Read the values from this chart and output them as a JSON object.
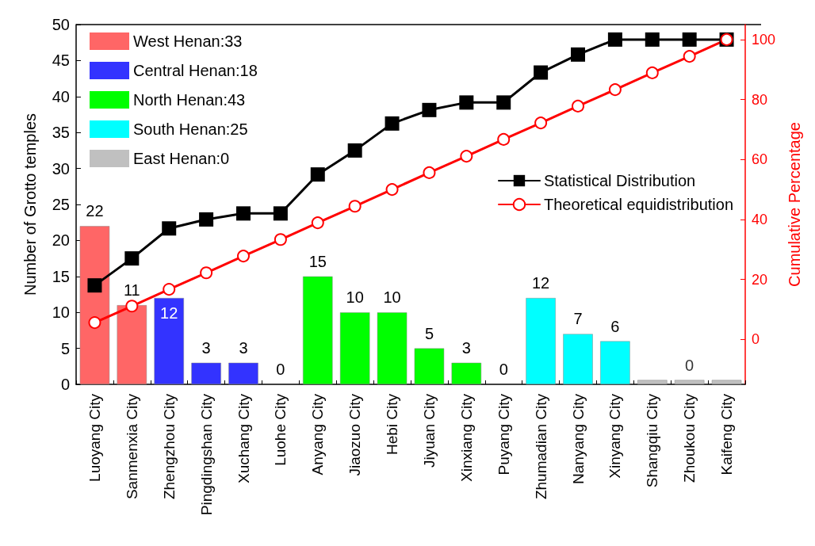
{
  "chart_data": {
    "type": "bar",
    "ylabel": "Number of Grotto temples",
    "y2label": "Cumulative Percentage",
    "categories": [
      "Luoyang City",
      "Sanmenxia City",
      "Zhengzhou City",
      "Pingdingshan City",
      "Xuchang City",
      "Luohe City",
      "Anyang City",
      "Jiaozuo City",
      "Hebi City",
      "Jiyuan City",
      "Xinxiang City",
      "Puyang City",
      "Zhumadian City",
      "Nanyang City",
      "Xinyang City",
      "Shangqiu City",
      "Zhoukou City",
      "Kaifeng City"
    ],
    "series": [
      {
        "name": "West Henan:33",
        "color": "#ff6666",
        "values": [
          22,
          11,
          null,
          null,
          null,
          null,
          null,
          null,
          null,
          null,
          null,
          null,
          null,
          null,
          null,
          null,
          null,
          null
        ],
        "value_labels": [
          "22",
          "11",
          null,
          null,
          null,
          null,
          null,
          null,
          null,
          null,
          null,
          null,
          null,
          null,
          null,
          null,
          null,
          null
        ]
      },
      {
        "name": "Central Henan:18",
        "color": "#3333ff",
        "values": [
          null,
          null,
          12,
          3,
          3,
          0,
          null,
          null,
          null,
          null,
          null,
          null,
          null,
          null,
          null,
          null,
          null,
          null
        ],
        "value_labels": [
          null,
          null,
          "12",
          "3",
          "3",
          "0",
          null,
          null,
          null,
          null,
          null,
          null,
          null,
          null,
          null,
          null,
          null,
          null
        ]
      },
      {
        "name": "North Henan:43",
        "color": "#00ff00",
        "values": [
          null,
          null,
          null,
          null,
          null,
          null,
          15,
          10,
          10,
          5,
          3,
          0,
          null,
          null,
          null,
          null,
          null,
          null
        ],
        "value_labels": [
          null,
          null,
          null,
          null,
          null,
          null,
          "15",
          "10",
          "10",
          "5",
          "3",
          "0",
          null,
          null,
          null,
          null,
          null,
          null
        ]
      },
      {
        "name": "South Henan:25",
        "color": "#00ffff",
        "values": [
          null,
          null,
          null,
          null,
          null,
          null,
          null,
          null,
          null,
          null,
          null,
          null,
          12,
          7,
          6,
          null,
          null,
          null
        ],
        "value_labels": [
          null,
          null,
          null,
          null,
          null,
          null,
          null,
          null,
          null,
          null,
          null,
          null,
          "12",
          "7",
          "6",
          null,
          null,
          null
        ]
      },
      {
        "name": "East Henan:0",
        "color": "#c0c0c0",
        "values": [
          null,
          null,
          null,
          null,
          null,
          null,
          null,
          null,
          null,
          null,
          null,
          null,
          null,
          null,
          null,
          0.6,
          0.6,
          0.6
        ]
      },
      {
        "name": "Statistical Distribution",
        "type": "line",
        "axis": "y2",
        "color": "#000000",
        "marker": "square",
        "values": [
          18,
          27,
          37,
          40,
          42,
          42,
          55,
          63,
          72,
          76.5,
          79,
          79,
          89,
          95,
          100,
          100,
          100,
          100
        ]
      },
      {
        "name": "Theoretical equidistribution",
        "type": "line",
        "axis": "y2",
        "color": "#ff0000",
        "marker": "circle",
        "values": [
          5.6,
          11.1,
          16.7,
          22.2,
          27.8,
          33.3,
          38.9,
          44.4,
          50,
          55.6,
          61.1,
          66.7,
          72.2,
          77.8,
          83.3,
          88.9,
          94.4,
          100
        ]
      }
    ],
    "ylim": [
      0,
      50
    ],
    "yticks": [
      0,
      5,
      10,
      15,
      20,
      25,
      30,
      35,
      40,
      45,
      50
    ],
    "y2lim": [
      -15,
      105
    ],
    "y2ticks": [
      0,
      20,
      40,
      60,
      80,
      100
    ],
    "annotations": [
      {
        "text": "0",
        "x": "Zhoukou City",
        "y": 0.6
      }
    ],
    "legend": "top left",
    "line_style": "solid"
  }
}
